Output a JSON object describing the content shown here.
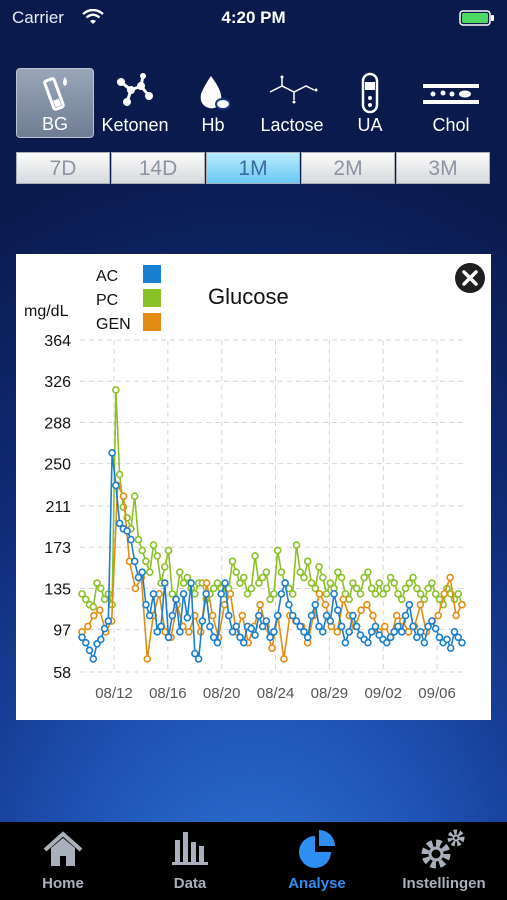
{
  "status_bar": {
    "carrier": "Carrier",
    "time": "4:20 PM"
  },
  "tests": [
    {
      "label": "BG",
      "icon": "blood-glucose-strip-icon",
      "active": true
    },
    {
      "label": "Ketonen",
      "icon": "ketone-molecule-icon",
      "active": false
    },
    {
      "label": "Hb",
      "icon": "hemoglobin-drop-icon",
      "active": false
    },
    {
      "label": "Lactose",
      "icon": "lactose-structure-icon",
      "active": false
    },
    {
      "label": "UA",
      "icon": "uric-acid-tube-icon",
      "active": false
    },
    {
      "label": "Chol",
      "icon": "cholesterol-vessel-icon",
      "active": false
    }
  ],
  "periods": [
    {
      "label": "7D",
      "active": false
    },
    {
      "label": "14D",
      "active": false
    },
    {
      "label": "1M",
      "active": true
    },
    {
      "label": "2M",
      "active": false
    },
    {
      "label": "3M",
      "active": false
    }
  ],
  "chart_data": {
    "type": "line",
    "title": "Glucose",
    "ylabel": "mg/dL",
    "xlabel": "",
    "yticks": [
      58,
      97,
      135,
      173,
      211,
      250,
      288,
      326,
      364
    ],
    "ylim": [
      58,
      364
    ],
    "xticks": [
      "08/12",
      "08/16",
      "08/20",
      "08/24",
      "08/29",
      "09/02",
      "09/06"
    ],
    "x_day_range": [
      0,
      32
    ],
    "grid": true,
    "legend_position": "top-left",
    "series": [
      {
        "name": "AC",
        "color": "#1a7fce",
        "values": [
          90,
          85,
          78,
          70,
          84,
          88,
          98,
          105,
          260,
          230,
          195,
          190,
          188,
          180,
          160,
          145,
          150,
          120,
          110,
          130,
          95,
          100,
          140,
          90,
          110,
          125,
          95,
          130,
          108,
          140,
          75,
          70,
          105,
          130,
          100,
          90,
          85,
          130,
          140,
          110,
          95,
          100,
          90,
          85,
          100,
          98,
          92,
          110,
          100,
          105,
          90,
          95,
          110,
          130,
          140,
          120,
          110,
          105,
          100,
          95,
          90,
          110,
          120,
          100,
          95,
          110,
          105,
          130,
          115,
          100,
          85,
          95,
          110,
          100,
          92,
          88,
          85,
          95,
          100,
          92,
          88,
          85,
          90,
          95,
          100,
          95,
          110,
          120,
          100,
          90,
          95,
          85,
          100,
          105,
          98,
          90,
          85,
          88,
          80,
          95,
          90,
          85
        ]
      },
      {
        "name": "PC",
        "color": "#8ac127",
        "values": [
          130,
          125,
          120,
          118,
          140,
          135,
          125,
          130,
          120,
          318,
          240,
          210,
          200,
          190,
          220,
          180,
          170,
          160,
          150,
          175,
          165,
          140,
          155,
          170,
          130,
          125,
          150,
          140,
          145,
          135,
          130,
          140,
          140,
          125,
          130,
          135,
          140,
          135,
          130,
          135,
          160,
          150,
          140,
          145,
          130,
          135,
          165,
          140,
          145,
          150,
          125,
          130,
          170,
          150,
          140,
          135,
          130,
          175,
          150,
          145,
          160,
          140,
          135,
          155,
          145,
          130,
          140,
          135,
          150,
          145,
          130,
          125,
          140,
          135,
          130,
          145,
          150,
          135,
          130,
          140,
          130,
          135,
          145,
          140,
          130,
          125,
          135,
          140,
          145,
          135,
          130,
          125,
          135,
          140,
          130,
          125,
          120,
          135,
          130,
          125,
          130,
          120
        ]
      },
      {
        "name": "GEN",
        "color": "#e28d12",
        "values": [
          95,
          100,
          110,
          115,
          95,
          105,
          230,
          220,
          160,
          135,
          145,
          70,
          110,
          130,
          95,
          90,
          120,
          100,
          95,
          110,
          95,
          140,
          110,
          90,
          120,
          130,
          95,
          110,
          85,
          100,
          120,
          100,
          80,
          110,
          70,
          110,
          105,
          100,
          85,
          110,
          130,
          120,
          100,
          95,
          125,
          110,
          100,
          115,
          120,
          110,
          95,
          100,
          90,
          110,
          105,
          95,
          100,
          120,
          95,
          105,
          110,
          130,
          145,
          110,
          120
        ]
      }
    ]
  },
  "tab_bar": [
    {
      "label": "Home",
      "icon": "home-icon",
      "active": false
    },
    {
      "label": "Data",
      "icon": "data-bar-chart-icon",
      "active": false
    },
    {
      "label": "Analyse",
      "icon": "analyse-pie-chart-icon",
      "active": true
    },
    {
      "label": "Instellingen",
      "icon": "settings-gears-icon",
      "active": false
    }
  ]
}
